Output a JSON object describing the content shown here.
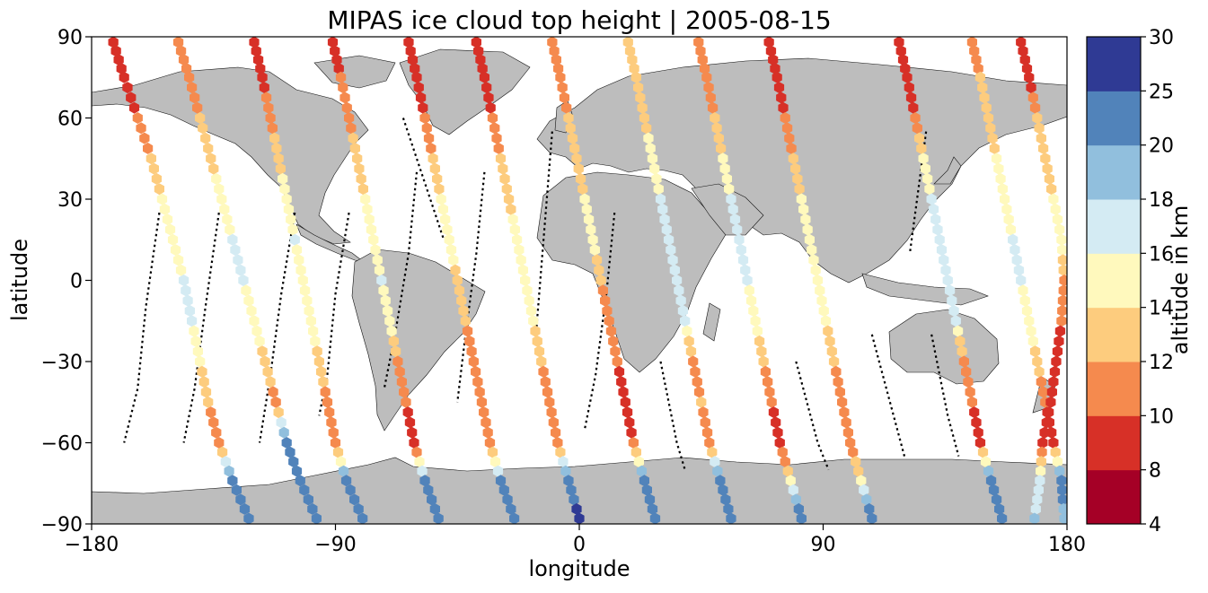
{
  "chart_data": {
    "type": "scatter",
    "title": "MIPAS ice cloud top height | 2005-08-15",
    "xlabel": "longitude",
    "ylabel": "latitude",
    "xlim": [
      -180,
      180
    ],
    "ylim": [
      -90,
      90
    ],
    "x_ticks": [
      -180,
      -90,
      0,
      90,
      180
    ],
    "y_ticks": [
      -90,
      -60,
      -30,
      0,
      30,
      60,
      90
    ],
    "x_tick_labels": [
      "−180",
      "−90",
      "0",
      "90",
      "180"
    ],
    "y_tick_labels": [
      "−90",
      "−60",
      "−30",
      "0",
      "30",
      "60",
      "90"
    ],
    "grid": false,
    "background_map": "coastlines with land filled grey",
    "marker": "hexagon",
    "colorbar": {
      "label": "altitude in km",
      "boundaries": [
        4,
        8,
        10,
        12,
        14,
        16,
        18,
        20,
        25,
        30
      ],
      "tick_labels": [
        "4",
        "8",
        "10",
        "12",
        "14",
        "16",
        "18",
        "20",
        "25",
        "30"
      ],
      "colors": [
        "#a50026",
        "#d73027",
        "#f46d43",
        "#fdae61",
        "#fee090",
        "#ffffbf",
        "#e0f3f8",
        "#abd9e9",
        "#74add1",
        "#313695"
      ],
      "bin_colors": [
        "#a50026",
        "#d73027",
        "#f58a4e",
        "#fdcc7e",
        "#fff9bd",
        "#d4ebf3",
        "#91bfdd",
        "#5183ba",
        "#2f3a94"
      ]
    },
    "colors": {
      "land": "#bdbdbd",
      "coast": "#000000",
      "no_cloud_track": "#000000"
    },
    "tracks": [
      {
        "lon": [
          -172,
          -168,
          -163,
          -158,
          -154,
          -150,
          -146,
          -143,
          -140,
          -137,
          -133,
          -128,
          -122
        ],
        "lat": [
          88,
          75,
          60,
          45,
          30,
          15,
          0,
          -15,
          -30,
          -45,
          -60,
          -74,
          -88
        ],
        "alt": [
          9,
          9,
          10,
          12,
          14,
          15,
          16,
          16,
          14,
          12,
          10,
          22,
          22
        ]
      },
      {
        "lon": [
          -148,
          -144,
          -140,
          -136,
          -132,
          -128,
          -124,
          -120,
          -116,
          -112,
          -108,
          -103,
          -97
        ],
        "lat": [
          88,
          75,
          60,
          45,
          30,
          15,
          0,
          -15,
          -30,
          -45,
          -60,
          -74,
          -88
        ],
        "alt": [
          10,
          11,
          12,
          13,
          15,
          16,
          16,
          15,
          13,
          11,
          21,
          22,
          22
        ]
      },
      {
        "lon": [
          -120,
          -117,
          -114,
          -111,
          -108,
          -105,
          -102,
          -99,
          -96,
          -93,
          -90,
          -86,
          -80
        ],
        "lat": [
          88,
          75,
          60,
          45,
          30,
          15,
          0,
          -15,
          -30,
          -45,
          -60,
          -74,
          -88
        ],
        "alt": [
          9,
          9,
          11,
          13,
          15,
          16,
          15,
          15,
          13,
          11,
          10,
          21,
          22
        ]
      },
      {
        "lon": [
          -91,
          -88,
          -85,
          -82,
          -79,
          -76,
          -73,
          -70,
          -67,
          -64,
          -61,
          -57,
          -52
        ],
        "lat": [
          88,
          75,
          60,
          45,
          30,
          15,
          0,
          -15,
          -30,
          -45,
          -60,
          -74,
          -88
        ],
        "alt": [
          9,
          10,
          11,
          13,
          14,
          15,
          16,
          15,
          11,
          10,
          9,
          20,
          22
        ]
      },
      {
        "lon": [
          -63,
          -60,
          -57,
          -54,
          -51,
          -48,
          -45,
          -42,
          -39,
          -36,
          -33,
          -29,
          -24
        ],
        "lat": [
          88,
          75,
          60,
          45,
          30,
          15,
          0,
          -15,
          -30,
          -45,
          -60,
          -74,
          -88
        ],
        "alt": [
          9,
          9,
          10,
          12,
          14,
          15,
          13,
          12,
          11,
          10,
          10,
          20,
          22
        ]
      },
      {
        "lon": [
          -38,
          -35,
          -32,
          -29,
          -26,
          -23,
          -20,
          -17,
          -14,
          -11,
          -8,
          -4,
          0
        ],
        "lat": [
          88,
          75,
          60,
          45,
          30,
          15,
          0,
          -15,
          -30,
          -45,
          -60,
          -74,
          -88
        ],
        "alt": [
          9,
          9,
          10,
          12,
          13,
          15,
          15,
          14,
          12,
          11,
          10,
          22,
          26
        ]
      },
      {
        "lon": [
          -10,
          -7,
          -4,
          -1,
          2,
          5,
          8,
          11,
          14,
          17,
          20,
          24,
          28
        ],
        "lat": [
          88,
          75,
          60,
          45,
          30,
          15,
          0,
          -15,
          -30,
          -45,
          -60,
          -74,
          -88
        ],
        "alt": [
          11,
          11,
          12,
          13,
          14,
          15,
          12,
          11,
          10,
          9,
          10,
          21,
          22
        ]
      },
      {
        "lon": [
          18,
          21,
          24,
          27,
          30,
          33,
          36,
          39,
          42,
          45,
          48,
          52,
          56
        ],
        "lat": [
          88,
          75,
          60,
          45,
          30,
          15,
          0,
          -15,
          -30,
          -45,
          -60,
          -74,
          -88
        ],
        "alt": [
          12,
          12,
          13,
          15,
          16,
          17,
          17,
          16,
          11,
          12,
          11,
          21,
          22
        ]
      },
      {
        "lon": [
          44,
          47,
          50,
          53,
          56,
          59,
          62,
          65,
          68,
          71,
          74,
          78,
          82
        ],
        "lat": [
          88,
          75,
          60,
          45,
          30,
          15,
          0,
          -15,
          -30,
          -45,
          -60,
          -74,
          -88
        ],
        "alt": [
          10,
          11,
          12,
          14,
          16,
          17,
          16,
          15,
          12,
          10,
          9,
          14,
          22
        ]
      },
      {
        "lon": [
          70,
          73,
          76,
          79,
          82,
          85,
          88,
          91,
          94,
          97,
          100,
          104,
          108
        ],
        "lat": [
          88,
          75,
          60,
          45,
          30,
          15,
          0,
          -15,
          -30,
          -45,
          -60,
          -74,
          -88
        ],
        "alt": [
          9,
          9,
          10,
          12,
          14,
          15,
          15,
          14,
          12,
          11,
          10,
          14,
          22
        ]
      },
      {
        "lon": [
          118,
          121,
          124,
          127,
          130,
          133,
          136,
          139,
          142,
          145,
          148,
          152,
          156
        ],
        "lat": [
          88,
          75,
          60,
          45,
          30,
          15,
          0,
          -15,
          -30,
          -45,
          -60,
          -74,
          -88
        ],
        "alt": [
          9,
          9,
          10,
          14,
          16,
          17,
          17,
          16,
          11,
          10,
          9,
          21,
          22
        ]
      },
      {
        "lon": [
          145,
          148,
          151,
          154,
          157,
          160,
          163,
          166,
          169,
          172,
          175,
          178,
          179
        ],
        "lat": [
          88,
          75,
          60,
          45,
          30,
          15,
          0,
          -15,
          -30,
          -45,
          -60,
          -74,
          -88
        ],
        "alt": [
          10,
          12,
          13,
          14,
          15,
          16,
          16,
          15,
          13,
          10,
          9,
          21,
          19
        ]
      },
      {
        "lon": [
          163,
          166,
          169,
          172,
          175,
          178,
          179,
          178,
          176,
          174,
          171,
          170,
          168
        ],
        "lat": [
          88,
          75,
          60,
          45,
          30,
          15,
          0,
          -15,
          -30,
          -45,
          -60,
          -74,
          -88
        ],
        "alt": [
          8,
          9,
          12,
          13,
          14,
          15,
          11,
          10,
          9,
          9,
          8,
          16,
          18
        ]
      }
    ],
    "no_cloud_tracks": [
      {
        "lon": [
          -155,
          -160,
          -163,
          -168
        ],
        "lat": [
          25,
          -10,
          -40,
          -60
        ]
      },
      {
        "lon": [
          -133,
          -138,
          -142,
          -146
        ],
        "lat": [
          25,
          -10,
          -40,
          -60
        ]
      },
      {
        "lon": [
          -105,
          -110,
          -114,
          -118
        ],
        "lat": [
          25,
          -5,
          -35,
          -60
        ]
      },
      {
        "lon": [
          -85,
          -90,
          -93,
          -96
        ],
        "lat": [
          25,
          -5,
          -35,
          -50
        ]
      },
      {
        "lon": [
          -60,
          -63,
          -68,
          -72
        ],
        "lat": [
          40,
          10,
          -20,
          -40
        ]
      },
      {
        "lon": [
          -35,
          -38,
          -42,
          -45
        ],
        "lat": [
          40,
          10,
          -20,
          -45
        ]
      },
      {
        "lon": [
          13,
          10,
          6,
          2
        ],
        "lat": [
          25,
          -5,
          -35,
          -55
        ]
      },
      {
        "lon": [
          -10,
          -12,
          -14,
          -16
        ],
        "lat": [
          55,
          30,
          5,
          -20
        ]
      },
      {
        "lon": [
          30,
          33,
          36,
          39
        ],
        "lat": [
          -30,
          -45,
          -60,
          -70
        ]
      },
      {
        "lon": [
          80,
          84,
          88,
          92
        ],
        "lat": [
          -30,
          -45,
          -60,
          -70
        ]
      },
      {
        "lon": [
          108,
          112,
          116,
          120
        ],
        "lat": [
          -20,
          -35,
          -50,
          -65
        ]
      },
      {
        "lon": [
          130,
          133,
          136,
          140
        ],
        "lat": [
          -20,
          -35,
          -50,
          -65
        ]
      },
      {
        "lon": [
          -65,
          -60,
          -55,
          -50
        ],
        "lat": [
          60,
          45,
          30,
          15
        ]
      },
      {
        "lon": [
          128,
          126,
          124,
          122
        ],
        "lat": [
          55,
          40,
          25,
          10
        ]
      }
    ]
  }
}
